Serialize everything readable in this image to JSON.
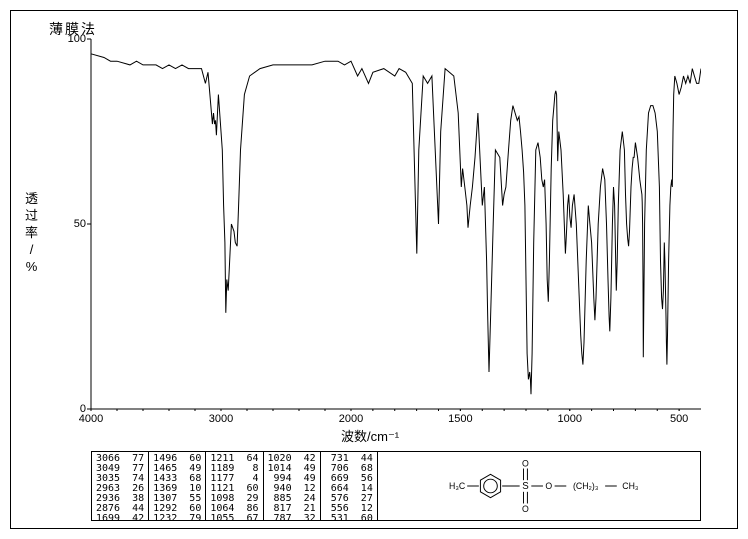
{
  "title": "薄膜法",
  "chart": {
    "type": "line",
    "ylabel_top": "透",
    "ylabel_mid1": "过",
    "ylabel_mid2": "率",
    "ylabel_sep": "/",
    "ylabel_bot": "%",
    "xlabel": "波数/cm⁻¹",
    "yticks": [
      0,
      50,
      100
    ],
    "xticks": [
      4000,
      3000,
      2000,
      1500,
      1000,
      500
    ],
    "xlim": [
      4000,
      400
    ],
    "ylim": [
      0,
      100
    ],
    "stroke_color": "#000000",
    "background_color": "#ffffff",
    "line_width": 1,
    "spectrum": [
      [
        4000,
        96
      ],
      [
        3900,
        95
      ],
      [
        3850,
        94
      ],
      [
        3800,
        94
      ],
      [
        3700,
        93
      ],
      [
        3650,
        94
      ],
      [
        3600,
        93
      ],
      [
        3500,
        93
      ],
      [
        3450,
        92
      ],
      [
        3400,
        93
      ],
      [
        3350,
        92
      ],
      [
        3300,
        93
      ],
      [
        3250,
        92
      ],
      [
        3200,
        92
      ],
      [
        3150,
        92
      ],
      [
        3120,
        88
      ],
      [
        3100,
        91
      ],
      [
        3066,
        77
      ],
      [
        3058,
        80
      ],
      [
        3049,
        77
      ],
      [
        3042,
        78
      ],
      [
        3035,
        74
      ],
      [
        3020,
        85
      ],
      [
        3000,
        75
      ],
      [
        2990,
        70
      ],
      [
        2980,
        55
      ],
      [
        2970,
        45
      ],
      [
        2963,
        26
      ],
      [
        2955,
        35
      ],
      [
        2945,
        32
      ],
      [
        2936,
        38
      ],
      [
        2920,
        50
      ],
      [
        2900,
        48
      ],
      [
        2890,
        45
      ],
      [
        2876,
        44
      ],
      [
        2865,
        55
      ],
      [
        2850,
        70
      ],
      [
        2820,
        85
      ],
      [
        2780,
        90
      ],
      [
        2700,
        92
      ],
      [
        2600,
        93
      ],
      [
        2500,
        93
      ],
      [
        2400,
        93
      ],
      [
        2300,
        93
      ],
      [
        2200,
        94
      ],
      [
        2100,
        94
      ],
      [
        2050,
        93
      ],
      [
        2000,
        94
      ],
      [
        1970,
        90
      ],
      [
        1950,
        92
      ],
      [
        1920,
        88
      ],
      [
        1900,
        91
      ],
      [
        1850,
        92
      ],
      [
        1800,
        90
      ],
      [
        1780,
        92
      ],
      [
        1750,
        91
      ],
      [
        1720,
        88
      ],
      [
        1699,
        42
      ],
      [
        1690,
        70
      ],
      [
        1670,
        90
      ],
      [
        1650,
        88
      ],
      [
        1630,
        90
      ],
      [
        1600,
        50
      ],
      [
        1590,
        75
      ],
      [
        1570,
        92
      ],
      [
        1550,
        91
      ],
      [
        1530,
        90
      ],
      [
        1510,
        80
      ],
      [
        1496,
        60
      ],
      [
        1490,
        65
      ],
      [
        1480,
        60
      ],
      [
        1470,
        55
      ],
      [
        1465,
        49
      ],
      [
        1455,
        55
      ],
      [
        1445,
        60
      ],
      [
        1433,
        68
      ],
      [
        1420,
        80
      ],
      [
        1400,
        55
      ],
      [
        1390,
        60
      ],
      [
        1380,
        40
      ],
      [
        1375,
        25
      ],
      [
        1369,
        10
      ],
      [
        1362,
        25
      ],
      [
        1350,
        50
      ],
      [
        1340,
        70
      ],
      [
        1320,
        68
      ],
      [
        1307,
        55
      ],
      [
        1300,
        58
      ],
      [
        1292,
        60
      ],
      [
        1280,
        70
      ],
      [
        1270,
        78
      ],
      [
        1260,
        82
      ],
      [
        1250,
        80
      ],
      [
        1240,
        78
      ],
      [
        1232,
        79
      ],
      [
        1225,
        75
      ],
      [
        1218,
        70
      ],
      [
        1211,
        64
      ],
      [
        1205,
        55
      ],
      [
        1200,
        35
      ],
      [
        1195,
        15
      ],
      [
        1189,
        8
      ],
      [
        1183,
        10
      ],
      [
        1180,
        8
      ],
      [
        1177,
        4
      ],
      [
        1172,
        15
      ],
      [
        1165,
        45
      ],
      [
        1155,
        70
      ],
      [
        1145,
        72
      ],
      [
        1135,
        68
      ],
      [
        1128,
        62
      ],
      [
        1121,
        60
      ],
      [
        1115,
        62
      ],
      [
        1108,
        50
      ],
      [
        1103,
        35
      ],
      [
        1098,
        29
      ],
      [
        1093,
        40
      ],
      [
        1085,
        65
      ],
      [
        1078,
        78
      ],
      [
        1072,
        82
      ],
      [
        1068,
        85
      ],
      [
        1064,
        86
      ],
      [
        1060,
        85
      ],
      [
        1055,
        67
      ],
      [
        1050,
        75
      ],
      [
        1040,
        70
      ],
      [
        1030,
        58
      ],
      [
        1025,
        50
      ],
      [
        1020,
        42
      ],
      [
        1017,
        45
      ],
      [
        1014,
        49
      ],
      [
        1010,
        55
      ],
      [
        1005,
        58
      ],
      [
        1000,
        52
      ],
      [
        994,
        49
      ],
      [
        988,
        55
      ],
      [
        980,
        58
      ],
      [
        970,
        50
      ],
      [
        960,
        35
      ],
      [
        950,
        20
      ],
      [
        945,
        15
      ],
      [
        940,
        12
      ],
      [
        935,
        18
      ],
      [
        925,
        40
      ],
      [
        915,
        55
      ],
      [
        908,
        50
      ],
      [
        900,
        45
      ],
      [
        890,
        30
      ],
      [
        885,
        24
      ],
      [
        880,
        30
      ],
      [
        870,
        50
      ],
      [
        860,
        60
      ],
      [
        850,
        65
      ],
      [
        840,
        62
      ],
      [
        832,
        50
      ],
      [
        825,
        35
      ],
      [
        820,
        25
      ],
      [
        817,
        21
      ],
      [
        812,
        30
      ],
      [
        805,
        50
      ],
      [
        800,
        60
      ],
      [
        795,
        55
      ],
      [
        790,
        40
      ],
      [
        787,
        32
      ],
      [
        783,
        40
      ],
      [
        778,
        55
      ],
      [
        770,
        70
      ],
      [
        760,
        75
      ],
      [
        750,
        70
      ],
      [
        745,
        58
      ],
      [
        740,
        50
      ],
      [
        735,
        46
      ],
      [
        731,
        44
      ],
      [
        727,
        48
      ],
      [
        720,
        60
      ],
      [
        715,
        65
      ],
      [
        710,
        68
      ],
      [
        706,
        68
      ],
      [
        700,
        72
      ],
      [
        695,
        70
      ],
      [
        690,
        68
      ],
      [
        685,
        65
      ],
      [
        680,
        62
      ],
      [
        675,
        60
      ],
      [
        670,
        58
      ],
      [
        669,
        56
      ],
      [
        667,
        50
      ],
      [
        665,
        35
      ],
      [
        664,
        14
      ],
      [
        662,
        25
      ],
      [
        658,
        50
      ],
      [
        650,
        70
      ],
      [
        640,
        80
      ],
      [
        630,
        82
      ],
      [
        620,
        82
      ],
      [
        610,
        80
      ],
      [
        600,
        75
      ],
      [
        590,
        60
      ],
      [
        585,
        40
      ],
      [
        580,
        30
      ],
      [
        576,
        27
      ],
      [
        572,
        32
      ],
      [
        568,
        45
      ],
      [
        565,
        40
      ],
      [
        560,
        25
      ],
      [
        558,
        18
      ],
      [
        556,
        12
      ],
      [
        553,
        20
      ],
      [
        548,
        40
      ],
      [
        542,
        55
      ],
      [
        538,
        60
      ],
      [
        534,
        62
      ],
      [
        531,
        60
      ],
      [
        528,
        75
      ],
      [
        525,
        85
      ],
      [
        520,
        90
      ],
      [
        510,
        88
      ],
      [
        500,
        85
      ],
      [
        490,
        87
      ],
      [
        480,
        90
      ],
      [
        470,
        88
      ],
      [
        460,
        90
      ],
      [
        450,
        88
      ],
      [
        440,
        92
      ],
      [
        430,
        90
      ],
      [
        420,
        88
      ],
      [
        410,
        88
      ],
      [
        400,
        92
      ]
    ]
  },
  "peak_cols": [
    [
      [
        3066,
        77
      ],
      [
        3049,
        77
      ],
      [
        3035,
        74
      ],
      [
        2963,
        26
      ],
      [
        2936,
        38
      ],
      [
        2876,
        44
      ],
      [
        1699,
        42
      ]
    ],
    [
      [
        1496,
        60
      ],
      [
        1465,
        49
      ],
      [
        1433,
        68
      ],
      [
        1369,
        10
      ],
      [
        1307,
        55
      ],
      [
        1292,
        60
      ],
      [
        1232,
        79
      ]
    ],
    [
      [
        1211,
        64
      ],
      [
        1189,
        8
      ],
      [
        1177,
        4
      ],
      [
        1121,
        60
      ],
      [
        1098,
        29
      ],
      [
        1064,
        86
      ],
      [
        1055,
        67
      ]
    ],
    [
      [
        1020,
        42
      ],
      [
        1014,
        49
      ],
      [
        994,
        49
      ],
      [
        940,
        12
      ],
      [
        885,
        24
      ],
      [
        817,
        21
      ],
      [
        787,
        32
      ]
    ],
    [
      [
        731,
        44
      ],
      [
        706,
        68
      ],
      [
        669,
        56
      ],
      [
        664,
        14
      ],
      [
        576,
        27
      ],
      [
        556,
        12
      ],
      [
        531,
        60
      ]
    ]
  ],
  "structure": {
    "label_ch3_left": "H₃C",
    "label_s": "S",
    "label_o1": "O",
    "label_o2": "O",
    "label_o3": "O",
    "label_ch2": "(CH₂)₃",
    "label_ch3_right": "CH₃"
  }
}
